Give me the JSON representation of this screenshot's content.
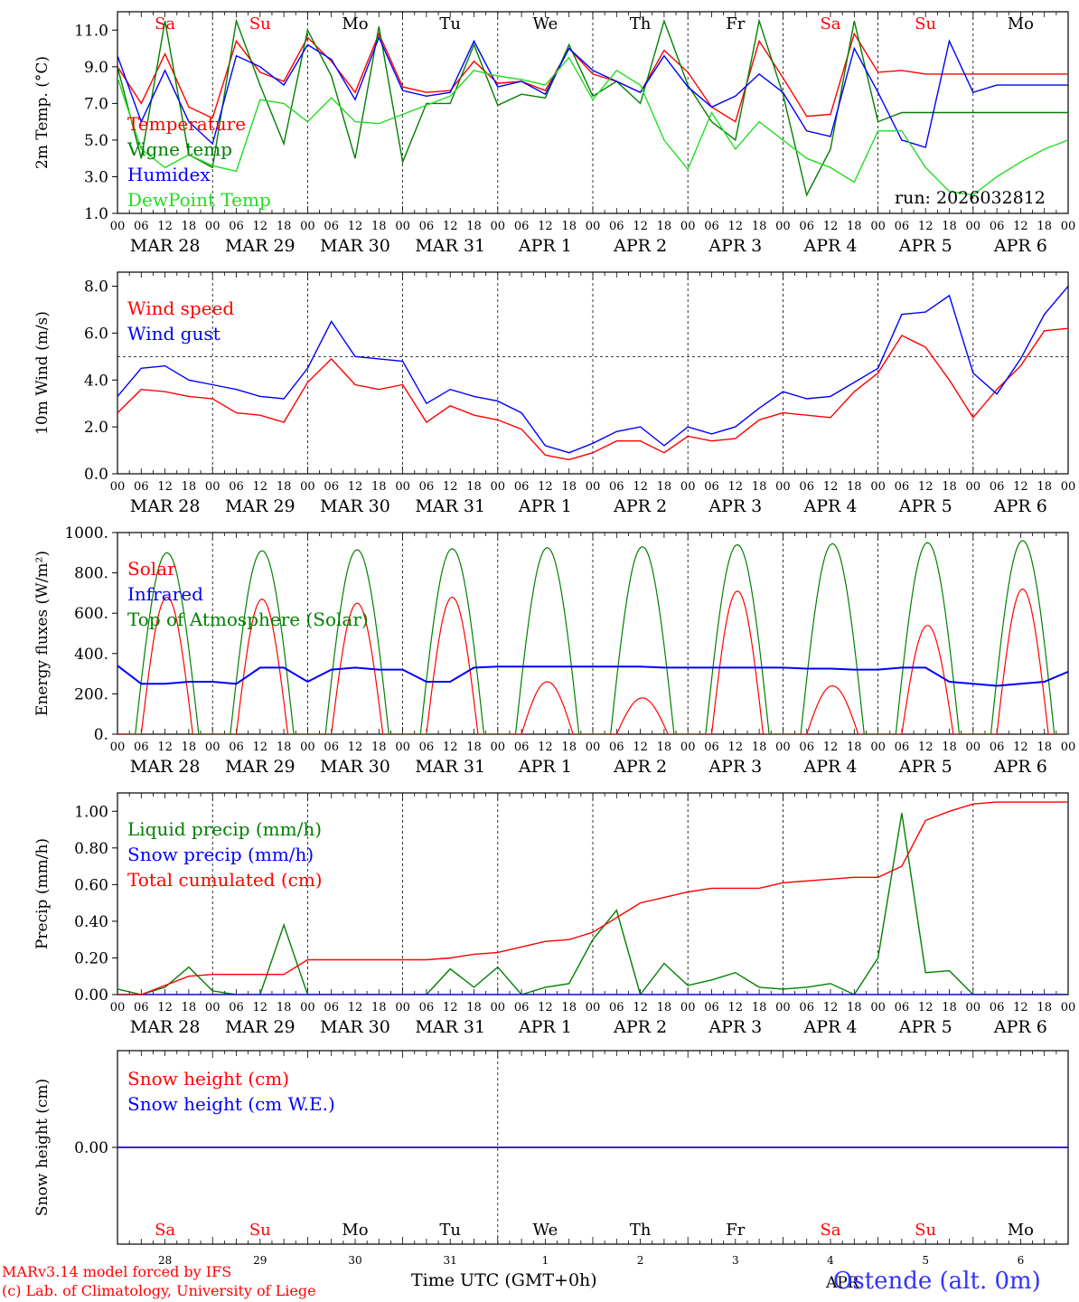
{
  "page": {
    "run_label": "run: 2026032812",
    "footer_line1": "MARv3.14 model forced by IFS",
    "footer_line2": "(c) Lab. of Climatology, University of Liege",
    "time_axis_label": "Time UTC (GMT+0h)",
    "month_label_bottom": "APR",
    "station": "Ostende (alt. 0m)"
  },
  "colors": {
    "red": "#ff0000",
    "green": "#008000",
    "blue": "#0000ff",
    "lightgreen": "#22dd22",
    "weekend": "#ff0000",
    "weekday": "#000000"
  },
  "time_axis": {
    "hour_ticks": [
      "00",
      "06",
      "12",
      "18"
    ],
    "date_labels": [
      "MAR 28",
      "MAR 29",
      "MAR 30",
      "MAR 31",
      "APR  1",
      "APR  2",
      "APR  3",
      "APR  4",
      "APR  5",
      "APR  6"
    ],
    "day_names": [
      "Sa",
      "Su",
      "Mo",
      "Tu",
      "We",
      "Th",
      "Fr",
      "Sa",
      "Su",
      "Mo"
    ],
    "weekend": [
      true,
      true,
      false,
      false,
      false,
      false,
      false,
      true,
      true,
      false
    ],
    "day_numbers": [
      "28",
      "29",
      "30",
      "31",
      "1",
      "2",
      "3",
      "4",
      "5",
      "6"
    ]
  },
  "chart_data": [
    {
      "type": "line",
      "ylabel": "2m Temp. (°C)",
      "ylim": [
        1,
        12
      ],
      "yticks": [
        "1.0",
        "3.0",
        "5.0",
        "7.0",
        "9.0",
        "11.0"
      ],
      "x_hours": [
        0,
        6,
        12,
        18,
        24,
        30,
        36,
        42,
        48,
        54,
        60,
        66,
        72,
        78,
        84,
        90,
        96,
        102,
        108,
        114,
        120,
        126,
        132,
        138,
        144,
        150,
        156,
        162,
        168,
        174,
        180,
        186,
        192,
        198,
        204,
        210,
        216,
        222,
        228,
        234,
        240
      ],
      "series": [
        {
          "name": "Temperature",
          "color": "red",
          "values": [
            9.0,
            7.0,
            9.7,
            6.8,
            6.2,
            10.4,
            8.7,
            8.2,
            10.6,
            9.3,
            7.6,
            10.8,
            7.9,
            7.6,
            7.7,
            9.3,
            8.1,
            8.2,
            7.7,
            10.0,
            8.6,
            8.2,
            7.6,
            9.9,
            8.7,
            6.8,
            6.0,
            10.4,
            8.4,
            6.3,
            6.4,
            10.8,
            8.7,
            8.8,
            8.6,
            8.6,
            8.6,
            8.6,
            8.6,
            8.6,
            8.6
          ]
        },
        {
          "name": "Vigne temp",
          "color": "green",
          "values": [
            9.0,
            4.0,
            11.5,
            4.2,
            3.5,
            11.5,
            8.0,
            4.8,
            11.0,
            8.5,
            4.0,
            11.2,
            3.8,
            7.0,
            7.0,
            10.2,
            6.9,
            7.5,
            7.3,
            10.2,
            7.4,
            8.2,
            7.0,
            11.5,
            8.0,
            6.0,
            5.0,
            11.5,
            7.5,
            2.0,
            4.5,
            11.5,
            6.0,
            6.5,
            6.5,
            6.5,
            6.5,
            6.5,
            6.5,
            6.5,
            6.5
          ]
        },
        {
          "name": "Humidex",
          "color": "blue",
          "values": [
            9.6,
            6.0,
            8.8,
            6.0,
            4.8,
            9.6,
            9.0,
            8.0,
            10.2,
            9.4,
            7.2,
            10.6,
            7.7,
            7.4,
            7.6,
            10.4,
            7.9,
            8.2,
            7.5,
            10.0,
            8.8,
            8.2,
            7.6,
            9.6,
            7.9,
            6.8,
            7.4,
            8.6,
            7.6,
            5.5,
            5.2,
            10.0,
            7.6,
            5.0,
            4.6,
            10.4,
            7.6,
            8.0,
            8.0,
            8.0,
            8.0
          ]
        },
        {
          "name": "DewPoint Temp",
          "color": "lightgreen",
          "values": [
            8.4,
            4.5,
            3.5,
            4.2,
            3.6,
            3.3,
            7.2,
            7.0,
            6.0,
            7.3,
            6.0,
            5.9,
            6.4,
            6.9,
            7.4,
            8.8,
            8.5,
            8.3,
            8.0,
            9.5,
            7.2,
            8.8,
            8.0,
            5.0,
            3.4,
            6.5,
            4.5,
            6.0,
            5.0,
            4.0,
            3.5,
            2.7,
            5.5,
            5.5,
            3.5,
            2.2,
            2.0,
            3.0,
            3.8,
            4.5,
            5.0
          ]
        }
      ],
      "legend": [
        "Temperature",
        "Vigne temp",
        "Humidex",
        "DewPoint Temp"
      ]
    },
    {
      "type": "line",
      "ylabel": "10m Wind (m/s)",
      "ylim": [
        0,
        8.6
      ],
      "yticks": [
        "0.0",
        "2.0",
        "4.0",
        "6.0",
        "8.0"
      ],
      "reference_line": 5.0,
      "x_hours": [
        0,
        6,
        12,
        18,
        24,
        30,
        36,
        42,
        48,
        54,
        60,
        66,
        72,
        78,
        84,
        90,
        96,
        102,
        108,
        114,
        120,
        126,
        132,
        138,
        144,
        150,
        156,
        162,
        168,
        174,
        180,
        186,
        192,
        198,
        204,
        210,
        216,
        222,
        228,
        234,
        240
      ],
      "series": [
        {
          "name": "Wind speed",
          "color": "red",
          "values": [
            2.6,
            3.6,
            3.5,
            3.3,
            3.2,
            2.6,
            2.5,
            2.2,
            3.9,
            4.9,
            3.8,
            3.6,
            3.8,
            2.2,
            2.9,
            2.5,
            2.3,
            1.9,
            0.8,
            0.6,
            0.9,
            1.4,
            1.4,
            0.9,
            1.6,
            1.4,
            1.5,
            2.3,
            2.6,
            2.5,
            2.4,
            3.5,
            4.3,
            5.9,
            5.4,
            4.0,
            2.4,
            3.6,
            4.6,
            6.1,
            6.2
          ]
        },
        {
          "name": "Wind gust",
          "color": "blue",
          "values": [
            3.3,
            4.5,
            4.6,
            4.0,
            3.8,
            3.6,
            3.3,
            3.2,
            4.5,
            6.5,
            5.0,
            4.9,
            4.8,
            3.0,
            3.6,
            3.3,
            3.1,
            2.6,
            1.2,
            0.9,
            1.3,
            1.8,
            2.0,
            1.2,
            2.0,
            1.7,
            2.0,
            2.8,
            3.5,
            3.2,
            3.3,
            3.9,
            4.5,
            6.8,
            6.9,
            7.6,
            4.3,
            3.4,
            4.9,
            6.8,
            8.0
          ]
        }
      ],
      "legend": [
        "Wind speed",
        "Wind gust"
      ]
    },
    {
      "type": "line",
      "ylabel": "Energy fluxes (W/m²)",
      "ylim": [
        0,
        1000
      ],
      "yticks": [
        "0.",
        "200.",
        "400.",
        "600.",
        "800.",
        "1000."
      ],
      "daily_peaks": {
        "Solar": [
          680,
          670,
          650,
          680,
          260,
          180,
          710,
          240,
          540,
          720
        ],
        "Top of Atmosphere (Solar)": [
          900,
          910,
          915,
          920,
          925,
          930,
          940,
          945,
          950,
          960
        ]
      },
      "series": [
        {
          "name": "Infrared",
          "color": "blue",
          "values": [
            340,
            250,
            250,
            260,
            260,
            250,
            330,
            330,
            260,
            320,
            330,
            320,
            320,
            260,
            260,
            330,
            335,
            335,
            335,
            335,
            335,
            335,
            335,
            330,
            330,
            330,
            330,
            330,
            330,
            325,
            325,
            320,
            320,
            330,
            330,
            260,
            250,
            240,
            250,
            260,
            310
          ]
        }
      ],
      "legend": [
        "Solar",
        "Infrared",
        "Top of Atmosphere (Solar)"
      ]
    },
    {
      "type": "line",
      "ylabel": "Precip (mm/h)",
      "ylim": [
        0,
        1.1
      ],
      "yticks": [
        "0.00",
        "0.20",
        "0.40",
        "0.60",
        "0.80",
        "1.00"
      ],
      "series": [
        {
          "name": "Liquid precip (mm/h)",
          "color": "green",
          "values": [
            0.03,
            0.0,
            0.04,
            0.15,
            0.02,
            0.0,
            0.0,
            0.38,
            0.0,
            0.0,
            0.0,
            0.0,
            0.0,
            0.0,
            0.14,
            0.04,
            0.15,
            0.0,
            0.04,
            0.06,
            0.3,
            0.46,
            0.0,
            0.17,
            0.05,
            0.08,
            0.12,
            0.04,
            0.03,
            0.04,
            0.06,
            0.0,
            0.2,
            0.99,
            0.12,
            0.13,
            0.0,
            0.0,
            0.0,
            0.0,
            0.0
          ]
        },
        {
          "name": "Snow precip (mm/h)",
          "color": "blue",
          "values": [
            0,
            0,
            0,
            0,
            0,
            0,
            0,
            0,
            0,
            0,
            0,
            0,
            0,
            0,
            0,
            0,
            0,
            0,
            0,
            0,
            0,
            0,
            0,
            0,
            0,
            0,
            0,
            0,
            0,
            0,
            0,
            0,
            0,
            0,
            0,
            0,
            0,
            0,
            0,
            0,
            0
          ]
        },
        {
          "name": "Total cumulated (cm)",
          "color": "red",
          "values": [
            0.0,
            0.0,
            0.05,
            0.1,
            0.11,
            0.11,
            0.11,
            0.11,
            0.19,
            0.19,
            0.19,
            0.19,
            0.19,
            0.19,
            0.2,
            0.22,
            0.23,
            0.26,
            0.29,
            0.3,
            0.34,
            0.42,
            0.5,
            0.53,
            0.56,
            0.58,
            0.58,
            0.58,
            0.61,
            0.62,
            0.63,
            0.64,
            0.64,
            0.7,
            0.95,
            1.0,
            1.04,
            1.05,
            1.05,
            1.05,
            1.05
          ]
        }
      ],
      "legend": [
        "Liquid precip (mm/h)",
        "Snow precip (mm/h)",
        "Total cumulated (cm)"
      ]
    },
    {
      "type": "line",
      "ylabel": "Snow height (cm)",
      "ylim": [
        -1,
        1
      ],
      "yticks": [
        "0.00"
      ],
      "series": [
        {
          "name": "Snow height (cm)",
          "color": "red",
          "values": [
            0,
            0,
            0,
            0,
            0,
            0,
            0,
            0,
            0,
            0,
            0
          ]
        },
        {
          "name": "Snow height (cm W.E.)",
          "color": "blue",
          "values": [
            0,
            0,
            0,
            0,
            0,
            0,
            0,
            0,
            0,
            0,
            0
          ]
        }
      ],
      "legend": [
        "Snow height (cm)",
        "Snow height (cm W.E.)"
      ]
    }
  ]
}
